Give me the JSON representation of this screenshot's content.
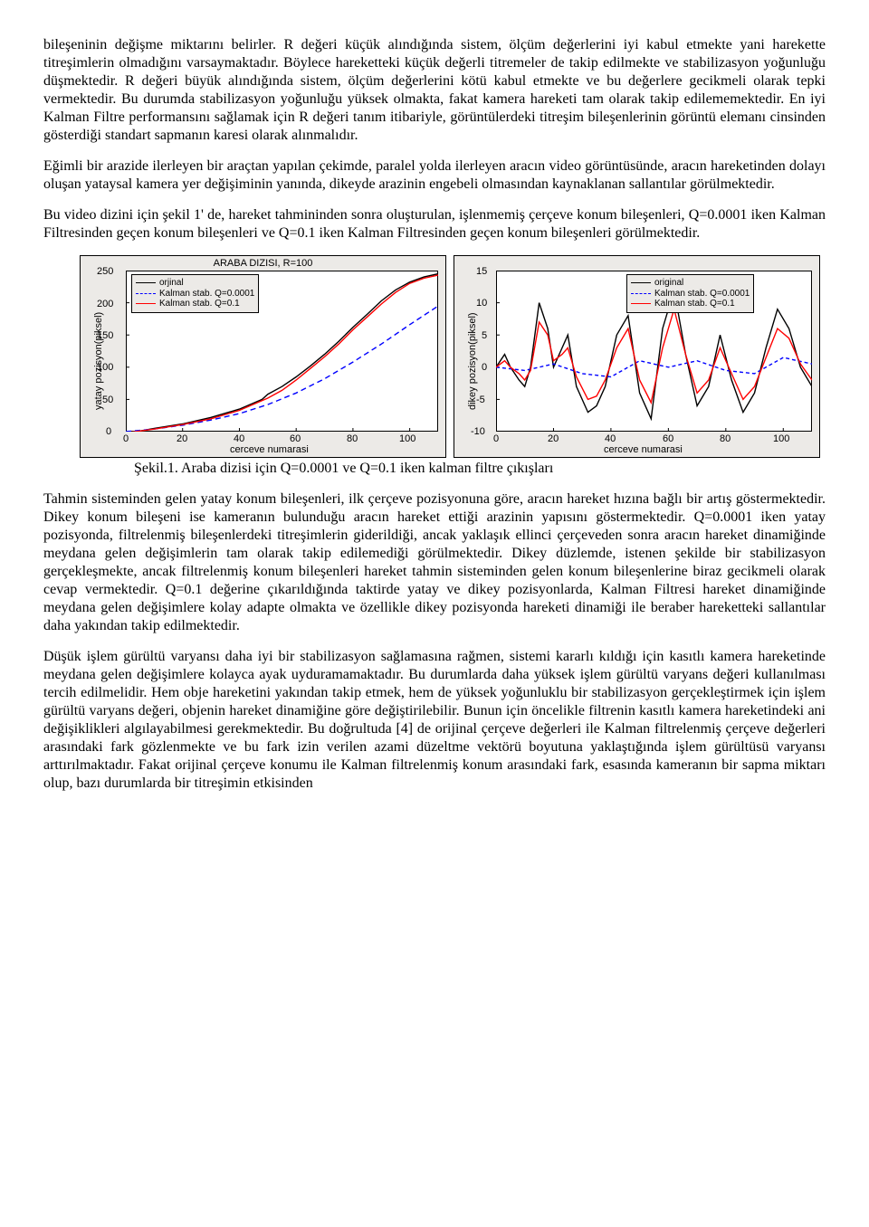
{
  "para1": "bileşeninin değişme miktarını belirler. R değeri küçük alındığında sistem, ölçüm değerlerini iyi kabul etmekte yani harekette titreşimlerin olmadığını varsaymaktadır. Böylece hareketteki küçük değerli titremeler de takip edilmekte ve stabilizasyon yoğunluğu düşmektedir. R değeri büyük alındığında sistem, ölçüm değerlerini kötü kabul etmekte ve bu değerlere gecikmeli olarak tepki vermektedir. Bu durumda stabilizasyon yoğunluğu yüksek olmakta, fakat kamera hareketi tam olarak takip edilememektedir. En iyi Kalman Filtre performansını sağlamak için R değeri tanım itibariyle, görüntülerdeki titreşim bileşenlerinin görüntü elemanı cinsinden gösterdiği standart sapmanın karesi olarak alınmalıdır.",
  "para2": "Eğimli bir arazide ilerleyen bir araçtan yapılan çekimde, paralel yolda ilerleyen aracın video görüntüsünde, aracın hareketinden dolayı oluşan yataysal kamera yer değişiminin yanında, dikeyde arazinin engebeli olmasından kaynaklanan sallantılar görülmektedir.",
  "para3": "Bu video dizini için şekil 1' de, hareket tahmininden sonra oluşturulan, işlenmemiş çerçeve konum bileşenleri, Q=0.0001 iken Kalman Filtresinden geçen konum bileşenleri ve Q=0.1 iken Kalman Filtresinden geçen konum bileşenleri görülmektedir.",
  "caption": "Şekil.1. Araba dizisi için Q=0.0001 ve Q=0.1 iken kalman filtre çıkışları",
  "para4": "Tahmin sisteminden gelen yatay konum bileşenleri,  ilk çerçeve pozisyonuna göre, aracın hareket hızına bağlı bir artış göstermektedir. Dikey konum bileşeni ise kameranın bulunduğu aracın hareket ettiği arazinin yapısını göstermektedir. Q=0.0001 iken yatay pozisyonda, filtrelenmiş bileşenlerdeki titreşimlerin giderildiği, ancak yaklaşık ellinci çerçeveden sonra aracın hareket dinamiğinde meydana gelen değişimlerin tam olarak takip edilemediği görülmektedir. Dikey düzlemde, istenen şekilde bir stabilizasyon gerçekleşmekte, ancak filtrelenmiş konum bileşenleri  hareket tahmin sisteminden gelen konum bileşenlerine biraz gecikmeli olarak cevap vermektedir. Q=0.1 değerine çıkarıldığında taktirde yatay ve dikey pozisyonlarda, Kalman Filtresi hareket dinamiğinde meydana gelen değişimlere kolay adapte olmakta ve özellikle dikey pozisyonda hareketi dinamiği ile beraber hareketteki sallantılar daha yakından takip edilmektedir.",
  "para5": "Düşük işlem gürültü varyansı daha iyi bir stabilizasyon sağlamasına rağmen, sistemi kararlı kıldığı için kasıtlı kamera hareketinde meydana gelen değişimlere kolayca ayak uyduramamaktadır. Bu durumlarda daha yüksek işlem gürültü varyans değeri kullanılması tercih edilmelidir. Hem obje hareketini yakından takip etmek, hem de yüksek yoğunluklu bir stabilizasyon gerçekleştirmek için işlem gürültü varyans değeri, objenin hareket dinamiğine göre değiştirilebilir. Bunun için öncelikle filtrenin kasıtlı kamera hareketindeki ani değişiklikleri algılayabilmesi gerekmektedir. Bu doğrultuda [4] de orijinal çerçeve değerleri ile Kalman filtrelenmiş çerçeve değerleri arasındaki fark gözlenmekte ve bu fark izin verilen azami düzeltme vektörü boyutuna yaklaştığında işlem gürültüsü varyansı arttırılmaktadır. Fakat orijinal çerçeve konumu ile Kalman filtrelenmiş konum arasındaki fark, esasında kameranın bir sapma miktarı olup, bazı durumlarda bir titreşimin etkisinden",
  "fig": {
    "panel_bg": "#eceae7",
    "plot_bg": "#ffffff",
    "left": {
      "title": "ARABA DIZISI,      R=100",
      "xlabel": "cerceve numarasi",
      "ylabel": "yatay pozisyon(piksel)",
      "xlim": [
        0,
        110
      ],
      "xticks": [
        0,
        20,
        40,
        60,
        80,
        100
      ],
      "ylim": [
        0,
        250
      ],
      "yticks": [
        0,
        50,
        100,
        150,
        200,
        250
      ],
      "legend": [
        {
          "label": "orjinal",
          "color": "#000000",
          "dash": "solid"
        },
        {
          "label": "Kalman stab. Q=0.0001",
          "color": "#0000ff",
          "dash": "dashed"
        },
        {
          "label": "Kalman stab. Q=0.1",
          "color": "#ff0000",
          "dash": "solid"
        }
      ],
      "series": {
        "orig": {
          "x": [
            0,
            10,
            20,
            30,
            40,
            48,
            50,
            55,
            60,
            65,
            70,
            75,
            80,
            85,
            90,
            95,
            100,
            105,
            110
          ],
          "y": [
            -3,
            5,
            12,
            22,
            35,
            50,
            58,
            70,
            85,
            102,
            120,
            140,
            162,
            182,
            203,
            220,
            232,
            240,
            245
          ],
          "color": "#000000",
          "dash": "none"
        },
        "blue": {
          "x": [
            0,
            10,
            20,
            30,
            40,
            50,
            60,
            70,
            80,
            90,
            100,
            110
          ],
          "y": [
            0,
            4,
            10,
            18,
            28,
            42,
            60,
            82,
            108,
            136,
            166,
            195
          ],
          "color": "#0000ff",
          "dash": "6,4"
        },
        "red": {
          "x": [
            0,
            10,
            20,
            30,
            40,
            50,
            55,
            60,
            65,
            70,
            75,
            80,
            85,
            90,
            95,
            100,
            105,
            110
          ],
          "y": [
            -2,
            4,
            11,
            20,
            33,
            52,
            64,
            80,
            98,
            116,
            136,
            158,
            178,
            198,
            216,
            230,
            238,
            243
          ],
          "color": "#ff0000",
          "dash": "none"
        }
      }
    },
    "right": {
      "xlabel": "cerceve numarasi",
      "ylabel": "dikey pozisyon(piksel)",
      "xlim": [
        0,
        110
      ],
      "xticks": [
        0,
        20,
        40,
        60,
        80,
        100
      ],
      "ylim": [
        -10,
        15
      ],
      "yticks": [
        -10,
        -5,
        0,
        5,
        10,
        15
      ],
      "legend": [
        {
          "label": "original",
          "color": "#000000",
          "dash": "solid"
        },
        {
          "label": "Kalman stab. Q=0.0001",
          "color": "#0000ff",
          "dash": "dashed"
        },
        {
          "label": "Kalman stab. Q=0.1",
          "color": "#ff0000",
          "dash": "solid"
        }
      ],
      "series": {
        "orig": {
          "x": [
            0,
            3,
            5,
            8,
            10,
            12,
            15,
            18,
            20,
            23,
            25,
            28,
            32,
            35,
            38,
            42,
            46,
            50,
            54,
            58,
            62,
            66,
            70,
            74,
            78,
            82,
            86,
            90,
            94,
            98,
            102,
            106,
            110
          ],
          "y": [
            0,
            2,
            0,
            -2,
            -3,
            0,
            10,
            6,
            0,
            3,
            5,
            -3,
            -7,
            -6,
            -3,
            5,
            8,
            -4,
            -8,
            6,
            12,
            2,
            -6,
            -3,
            5,
            -2,
            -7,
            -4,
            3,
            9,
            6,
            0,
            -3
          ],
          "color": "#000000",
          "dash": "none"
        },
        "blue": {
          "x": [
            0,
            10,
            20,
            30,
            40,
            50,
            60,
            70,
            80,
            90,
            100,
            110
          ],
          "y": [
            0,
            -0.5,
            0.5,
            -1,
            -1.5,
            1,
            0,
            1,
            -0.5,
            -1,
            1.5,
            0.5
          ],
          "color": "#0000ff",
          "dash": "4,3"
        },
        "red": {
          "x": [
            0,
            3,
            5,
            8,
            10,
            12,
            15,
            18,
            20,
            23,
            25,
            28,
            32,
            35,
            38,
            42,
            46,
            50,
            54,
            58,
            62,
            66,
            70,
            74,
            78,
            82,
            86,
            90,
            94,
            98,
            102,
            106,
            110
          ],
          "y": [
            0,
            1,
            0,
            -1,
            -2,
            -0.5,
            7,
            5,
            1,
            2,
            3,
            -1.5,
            -5,
            -4.5,
            -2,
            3,
            6,
            -2,
            -5.5,
            3,
            9,
            2,
            -4,
            -2,
            3,
            -1,
            -5,
            -3,
            1.5,
            6,
            4.5,
            0.5,
            -2
          ],
          "color": "#ff0000",
          "dash": "none"
        }
      }
    }
  }
}
